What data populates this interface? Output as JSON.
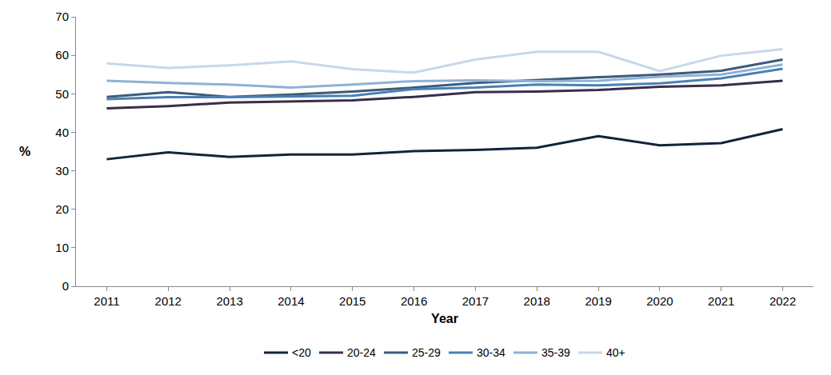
{
  "chart_data": {
    "type": "line",
    "x_label": "Year",
    "y_label": "%",
    "categories": [
      "2011",
      "2012",
      "2013",
      "2014",
      "2015",
      "2016",
      "2017",
      "2018",
      "2019",
      "2020",
      "2021",
      "2022"
    ],
    "series": [
      {
        "name": "<20",
        "color": "#13233a",
        "values": [
          33,
          34.8,
          33.6,
          34.2,
          34.2,
          35.1,
          35.4,
          36,
          39,
          36.6,
          37.2,
          40.8
        ]
      },
      {
        "name": "20-24",
        "color": "#3b2d4a",
        "values": [
          46.2,
          46.8,
          47.7,
          48,
          48.3,
          49.2,
          50.4,
          50.6,
          51,
          51.8,
          52.2,
          53.4
        ]
      },
      {
        "name": "25-29",
        "color": "#3b5b7a",
        "values": [
          49.2,
          50.4,
          49.2,
          49.8,
          50.6,
          51.6,
          52.8,
          53.6,
          54.3,
          55,
          56,
          58.9
        ]
      },
      {
        "name": "30-34",
        "color": "#4a80b4",
        "values": [
          48.6,
          49.1,
          49.1,
          49.3,
          49.5,
          51.2,
          51.6,
          52.4,
          52.2,
          52.7,
          54,
          56.5
        ]
      },
      {
        "name": "35-39",
        "color": "#8fb1d5",
        "values": [
          53.4,
          52.8,
          52.4,
          51.6,
          52.4,
          53.3,
          53.5,
          53.3,
          53.4,
          54.4,
          55,
          57.6
        ]
      },
      {
        "name": "40+",
        "color": "#c8d7ea",
        "values": [
          57.9,
          56.7,
          57.4,
          58.4,
          56.4,
          55.5,
          58.9,
          60.9,
          60.9,
          55.9,
          59.9,
          61.6
        ]
      }
    ],
    "ylim": [
      0,
      70
    ],
    "yticks": [
      0,
      10,
      20,
      30,
      40,
      50,
      60,
      70
    ],
    "grid": false,
    "legend": "bottom"
  }
}
